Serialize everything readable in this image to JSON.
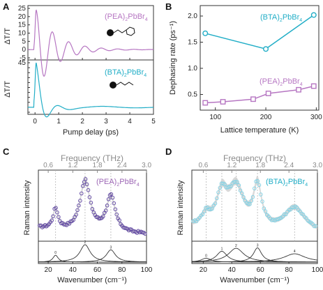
{
  "colors": {
    "pea": "#b676c2",
    "bta": "#22aec7",
    "pea_marker": "#5a3fa0",
    "bta_marker": "#7fd2e6",
    "fit": "#333333",
    "band": "#c9c9c9"
  },
  "panels": {
    "A": {
      "letter": "A",
      "y_label": "ΔT/T",
      "x_label": "Pump delay (ps)",
      "top_label": {
        "prefix": "(PEA)",
        "sub": "2",
        "suffix": "PbBr",
        "sub2": "4"
      },
      "bottom_label": {
        "prefix": "(BTA)",
        "sub": "2",
        "suffix": "PbBr",
        "sub2": "4"
      },
      "top_icon": "phenethyl-molecule-icon",
      "bottom_icon": "butyl-chain-molecule-icon"
    },
    "B": {
      "letter": "B",
      "y_label": "Dephasing rate (ps⁻¹)",
      "x_label": "Lattice temperature (K)",
      "label_bta": {
        "prefix": "(BTA)",
        "sub": "2",
        "suffix": "PbBr",
        "sub2": "4"
      },
      "label_pea": {
        "prefix": "(PEA)",
        "sub": "2",
        "suffix": "PbBr",
        "sub2": "4"
      }
    },
    "C": {
      "letter": "C",
      "top_axis_label": "Frequency (THz)",
      "y_label": "Raman intensity",
      "x_label": "Wavenumber (cm⁻¹)",
      "legend": {
        "prefix": "(PEA)",
        "sub": "2",
        "suffix": "PbBr",
        "sub2": "4"
      },
      "peak_labels": [
        "0",
        "2",
        "3"
      ]
    },
    "D": {
      "letter": "D",
      "top_axis_label": "Frequency (THz)",
      "y_label": "Raman intensity",
      "x_label": "Wavenumber (cm⁻¹)",
      "legend": {
        "prefix": "(BTA)",
        "sub": "2",
        "suffix": "PbBr",
        "sub2": "4"
      },
      "peak_labels": [
        "0",
        "1",
        "2",
        "3",
        "4"
      ]
    }
  },
  "chart_data": [
    {
      "panel": "A-top",
      "type": "line",
      "series": [
        {
          "name": "(PEA)2PbBr4",
          "color": "#b676c2"
        }
      ],
      "xlim": [
        -0.3,
        5
      ],
      "ylim": [
        -5,
        25
      ],
      "xticks": [
        0,
        1,
        2,
        3,
        4,
        5
      ],
      "yticks": [
        -5,
        0,
        5,
        10,
        15,
        20,
        25
      ],
      "oscillation": {
        "frequency_thz": 1.45,
        "amplitude": 24,
        "decay_ps": 0.85,
        "peak_at_ps": 0.05
      }
    },
    {
      "panel": "A-bottom",
      "type": "line",
      "series": [
        {
          "name": "(BTA)2PbBr4",
          "color": "#22aec7"
        }
      ],
      "xlim": [
        -0.3,
        5
      ],
      "ylim": [
        -5,
        45
      ],
      "xticks": [
        0,
        1,
        2,
        3,
        4,
        5
      ],
      "yticks": [
        -5,
        0,
        5,
        10,
        15,
        20,
        25,
        30,
        35,
        40,
        45
      ],
      "xlabel": "Pump delay (ps)",
      "oscillation": {
        "frequency_thz": 1.0,
        "amplitude": 42,
        "decay_ps": 0.35,
        "peak_at_ps": 0.05
      }
    },
    {
      "panel": "B",
      "type": "line",
      "series": [
        {
          "name": "(BTA)2PbBr4",
          "color": "#22aec7",
          "marker": "circle",
          "x": [
            80,
            200,
            295
          ],
          "y": [
            1.67,
            1.37,
            2.02
          ]
        },
        {
          "name": "(PEA)2PbBr4",
          "color": "#b676c2",
          "marker": "square",
          "x": [
            80,
            115,
            175,
            205,
            265,
            295
          ],
          "y": [
            0.34,
            0.36,
            0.41,
            0.52,
            0.59,
            0.66
          ]
        }
      ],
      "xlim": [
        70,
        305
      ],
      "ylim": [
        0.2,
        2.2
      ],
      "xticks": [
        100,
        200,
        300
      ],
      "yticks": [
        0.5,
        1.0,
        1.5,
        2.0
      ],
      "xlabel": "Lattice temperature (K)",
      "ylabel": "Dephasing rate (ps⁻¹)"
    },
    {
      "panel": "C",
      "type": "scatter",
      "series": [
        {
          "name": "(PEA)2PbBr4",
          "color": "#5a3fa0"
        }
      ],
      "xlim": [
        12,
        100
      ],
      "xticks": [
        20,
        40,
        60,
        80,
        100
      ],
      "top_ticks_thz": [
        0.6,
        1.2,
        1.8,
        2.4,
        3.0
      ],
      "peaks_cm": [
        26,
        50,
        71
      ],
      "peak_heights": [
        0.35,
        0.88,
        0.62
      ],
      "peak_widths": [
        2.5,
        5.0,
        4.5
      ],
      "xlabel": "Wavenumber (cm⁻¹)",
      "ylabel": "Raman intensity",
      "top_label": "Frequency (THz)"
    },
    {
      "panel": "D",
      "type": "scatter",
      "series": [
        {
          "name": "(BTA)2PbBr4",
          "color": "#7fd2e6"
        }
      ],
      "xlim": [
        12,
        100
      ],
      "xticks": [
        20,
        40,
        60,
        80,
        100
      ],
      "top_ticks_thz": [
        0.6,
        1.2,
        1.8,
        2.4,
        3.0
      ],
      "peaks_cm": [
        22,
        33,
        43,
        58,
        84
      ],
      "peak_heights": [
        0.2,
        0.55,
        0.7,
        0.72,
        0.42
      ],
      "peak_widths": [
        4,
        4.5,
        6.5,
        3.5,
        9
      ],
      "xlabel": "Wavenumber (cm⁻¹)",
      "ylabel": "Raman intensity",
      "top_label": "Frequency (THz)"
    }
  ]
}
